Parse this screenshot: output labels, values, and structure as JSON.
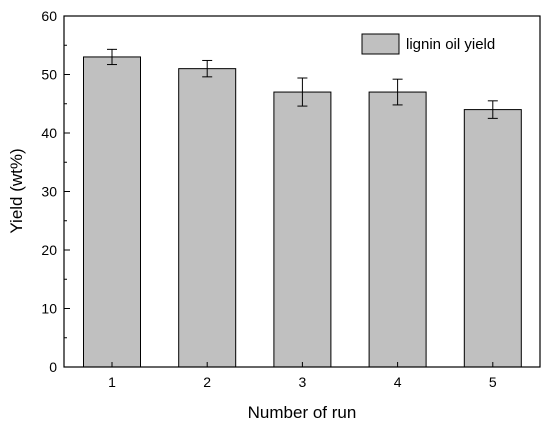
{
  "chart_data": {
    "type": "bar",
    "title": "",
    "xlabel": "Number of run",
    "ylabel": "Yield (wt%)",
    "categories": [
      "1",
      "2",
      "3",
      "4",
      "5"
    ],
    "series": [
      {
        "name": "lignin oil yield",
        "values": [
          53,
          51,
          47,
          47,
          44
        ],
        "errors": [
          1.3,
          1.4,
          2.4,
          2.2,
          1.5
        ],
        "color": "#c0c0c0"
      }
    ],
    "ylim": [
      0,
      60
    ],
    "yticks": [
      0,
      10,
      20,
      30,
      40,
      50,
      60
    ],
    "grid": false,
    "legend": "top-right"
  }
}
